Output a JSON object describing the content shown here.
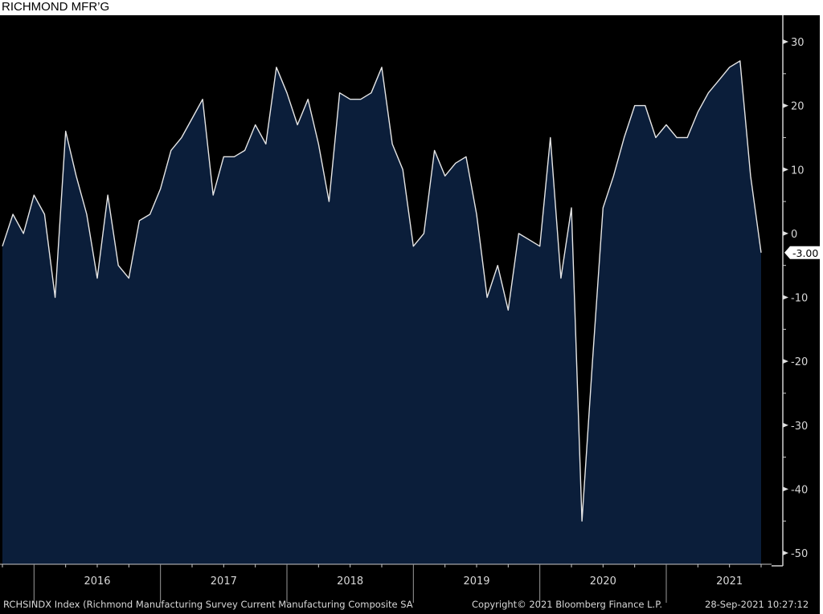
{
  "header": {
    "title": "RICHMOND MFR’G"
  },
  "footer": {
    "series_description": "RCHSINDX Index (Richmond Manufacturing Survey Current Manufacturing Composite SA",
    "copyright": "Copyright© 2021 Bloomberg Finance L.P.",
    "timestamp": "28-Sep-2021 10:27:12"
  },
  "colors": {
    "background": "#000000",
    "fill": "#0b1e3a",
    "line": "#e6e6e6",
    "text": "#d8d8d8"
  },
  "chart_data": {
    "type": "area",
    "title": "RICHMOND MFR’G",
    "frequency": "monthly",
    "x_start": "2015-09",
    "x_end": "2021-09",
    "x_tick_labels": [
      "2016",
      "2017",
      "2018",
      "2019",
      "2020",
      "2021"
    ],
    "y_axis_side": "right",
    "ylim": [
      -50,
      30
    ],
    "y_ticks": [
      30,
      20,
      10,
      0,
      -10,
      -20,
      -30,
      -40,
      -50
    ],
    "last_value_label": "-3.00",
    "grid": false,
    "series": [
      {
        "values": [
          -2,
          3,
          0,
          6,
          3,
          -10,
          16,
          9,
          3,
          -7,
          6,
          -5,
          -7,
          2,
          3,
          7,
          13,
          15,
          18,
          21,
          6,
          12,
          12,
          13,
          17,
          14,
          26,
          22,
          17,
          21,
          14,
          5,
          22,
          21,
          21,
          22,
          26,
          14,
          10,
          -2,
          0,
          13,
          9,
          11,
          12,
          3,
          -10,
          -5,
          -12,
          0,
          -1,
          -2,
          15,
          -7,
          4,
          -45,
          -20,
          4,
          9,
          15,
          20,
          20,
          15,
          17,
          15,
          15,
          19,
          22,
          24,
          26,
          27,
          9,
          -3
        ]
      }
    ]
  }
}
